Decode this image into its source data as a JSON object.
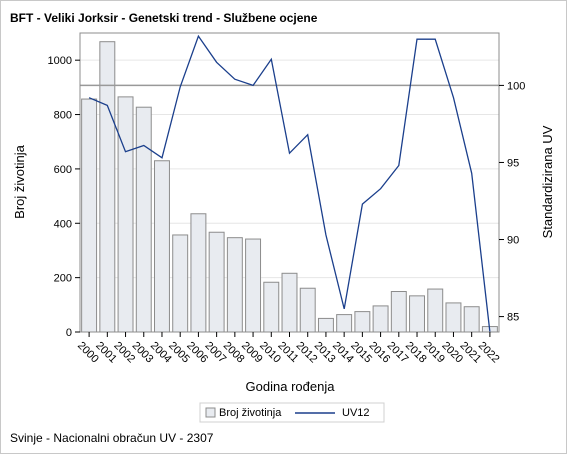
{
  "title": "BFT - Veliki Jorksir - Genetski trend - Službene ocjene",
  "footnote": "Svinje - Nacionalni obračun UV - 2307",
  "colors": {
    "bar_fill": "#E8EBF0",
    "bar_stroke": "#8C8C8C",
    "line": "#1B3F8C",
    "reference_line": "#999999",
    "grid": "#E6E6E6"
  },
  "chart_data": {
    "type": "bar",
    "title": "BFT - Veliki Jorksir - Genetski trend - Službene ocjene",
    "xlabel": "Godina rođenja",
    "ylabel": "Broj životinja",
    "y2label": "Standardizirana UV",
    "categories": [
      "2000",
      "2001",
      "2002",
      "2003",
      "2004",
      "2005",
      "2006",
      "2007",
      "2008",
      "2009",
      "2010",
      "2011",
      "2012",
      "2013",
      "2014",
      "2015",
      "2016",
      "2017",
      "2018",
      "2019",
      "2020",
      "2021",
      "2022"
    ],
    "series": [
      {
        "name": "Broj životinja",
        "type": "bar",
        "axis": "left",
        "values": [
          857,
          1068,
          865,
          827,
          630,
          357,
          435,
          367,
          347,
          342,
          183,
          216,
          161,
          50,
          64,
          75,
          96,
          149,
          133,
          158,
          107,
          93,
          20
        ]
      },
      {
        "name": "UV12",
        "type": "line",
        "axis": "right",
        "values": [
          99.2,
          98.7,
          95.7,
          96.1,
          95.3,
          99.9,
          103.2,
          101.5,
          100.4,
          100.0,
          101.7,
          95.6,
          96.8,
          90.3,
          85.5,
          92.3,
          93.3,
          94.8,
          103.0,
          103.0,
          99.2,
          94.3,
          84.0
        ]
      }
    ],
    "ylim": [
      0,
      1100
    ],
    "yticks": [
      0,
      200,
      400,
      600,
      800,
      1000
    ],
    "y2lim": [
      84,
      103.4
    ],
    "y2ticks": [
      85,
      90,
      95,
      100
    ],
    "reference_line_y2": 100,
    "grid": true,
    "legend": "bottom"
  }
}
